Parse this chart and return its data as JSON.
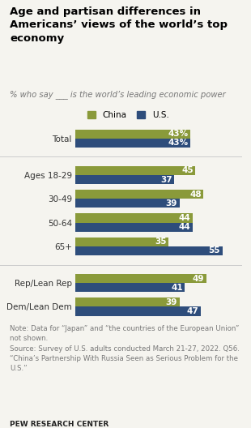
{
  "title": "Age and partisan differences in\nAmericans’ views of the world’s top\neconomy",
  "subtitle": "% who say ___ is the world’s leading economic power",
  "categories": [
    "Total",
    "Ages 18-29",
    "30-49",
    "50-64",
    "65+",
    "Rep/Lean Rep",
    "Dem/Lean Dem"
  ],
  "china_values": [
    43,
    45,
    48,
    44,
    35,
    49,
    39
  ],
  "us_values": [
    43,
    37,
    39,
    44,
    55,
    41,
    47
  ],
  "china_color": "#8a9a3a",
  "us_color": "#2e4d7b",
  "china_label": "China",
  "us_label": "U.S.",
  "note": "Note: Data for “Japan” and “the countries of the European Union”\nnot shown.\nSource: Survey of U.S. adults conducted March 21-27, 2022. Q56.\n“China’s Partnership With Russia Seen as Serious Problem for the\nU.S.”",
  "source_bold": "PEW RESEARCH CENTER",
  "background_color": "#f5f4ef",
  "bar_height": 0.38,
  "xlim": [
    0,
    62
  ],
  "label_fontsize": 7.5,
  "category_fontsize": 7.5,
  "note_fontsize": 6.2,
  "title_fontsize": 9.5,
  "subtitle_fontsize": 7.2
}
